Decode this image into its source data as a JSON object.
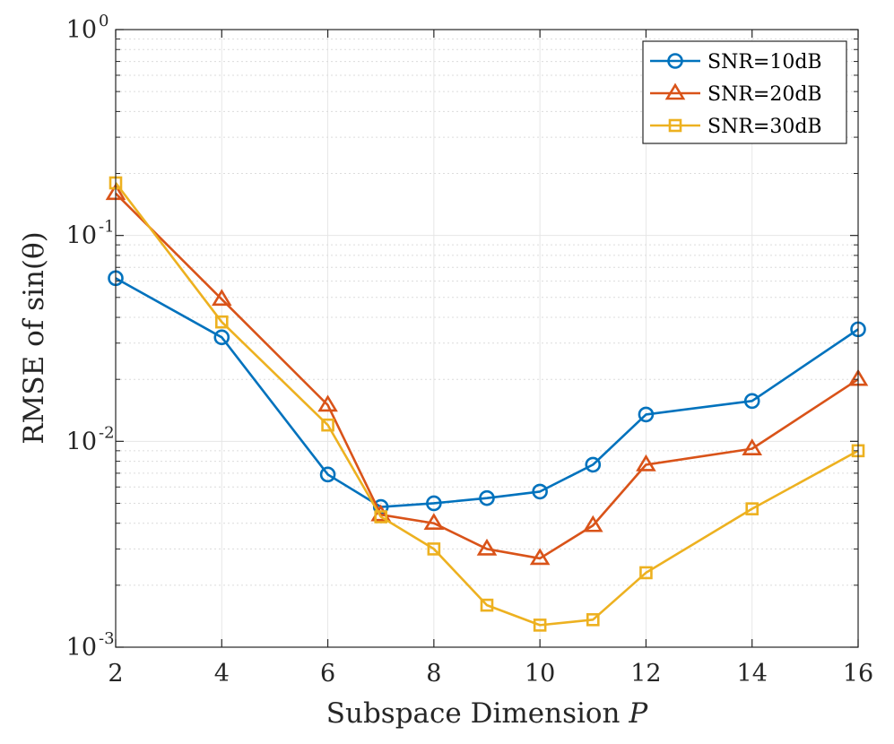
{
  "chart_data": {
    "type": "line",
    "xlabel": "Subspace Dimension P",
    "ylabel": "RMSE of sin(θ)",
    "xlim": [
      2,
      16
    ],
    "ylim": [
      0.001,
      1
    ],
    "yscale": "log",
    "grid": true,
    "legend_position": "top-right",
    "x_ticks": [
      2,
      4,
      6,
      8,
      10,
      12,
      14,
      16
    ],
    "y_ticks": [
      {
        "base": "10",
        "exp": "-3",
        "value": 0.001
      },
      {
        "base": "10",
        "exp": "-2",
        "value": 0.01
      },
      {
        "base": "10",
        "exp": "-1",
        "value": 0.1
      },
      {
        "base": "10",
        "exp": "0",
        "value": 1
      }
    ],
    "series": [
      {
        "name": "SNR=10dB",
        "color": "#0072BD",
        "marker": "circle",
        "x": [
          2,
          4,
          6,
          7,
          8,
          9,
          10,
          11,
          12,
          14,
          16
        ],
        "y": [
          0.062,
          0.032,
          0.0069,
          0.0048,
          0.005,
          0.0053,
          0.0057,
          0.0077,
          0.0135,
          0.0157,
          0.035
        ]
      },
      {
        "name": "SNR=20dB",
        "color": "#D95319",
        "marker": "triangle",
        "x": [
          2,
          4,
          6,
          7,
          8,
          9,
          10,
          11,
          12,
          14,
          16
        ],
        "y": [
          0.16,
          0.049,
          0.015,
          0.0044,
          0.004,
          0.003,
          0.0027,
          0.0039,
          0.0077,
          0.0092,
          0.02
        ]
      },
      {
        "name": "SNR=30dB",
        "color": "#EDB120",
        "marker": "square",
        "x": [
          2,
          4,
          6,
          7,
          8,
          9,
          10,
          11,
          12,
          14,
          16
        ],
        "y": [
          0.18,
          0.038,
          0.012,
          0.0043,
          0.003,
          0.0016,
          0.00128,
          0.00136,
          0.0023,
          0.0047,
          0.009
        ]
      }
    ]
  }
}
